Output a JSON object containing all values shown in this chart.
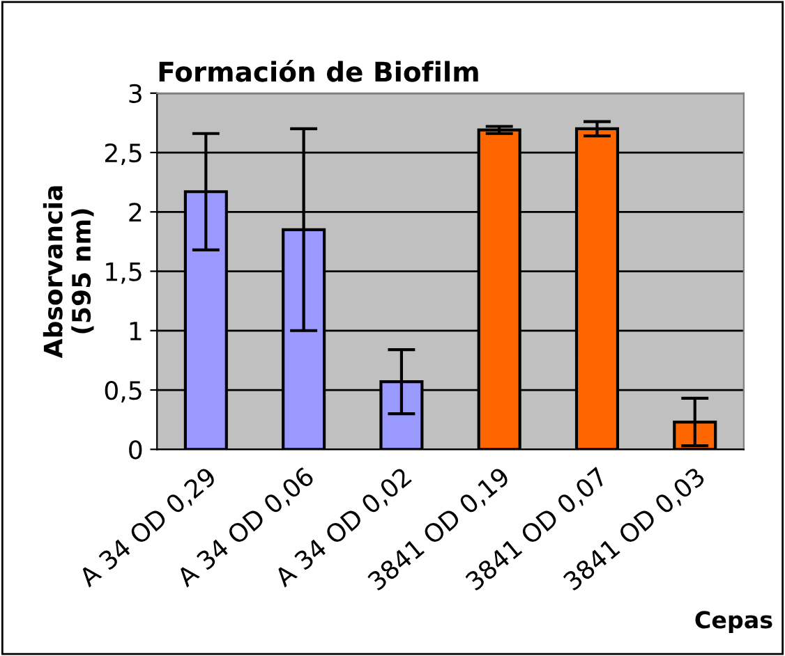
{
  "chart_data": {
    "type": "bar",
    "title": "Formación de Biofilm",
    "xlabel": "Cepas",
    "ylabel": "Absorvancia\n(595 nm)",
    "categories": [
      "A 34 OD 0,29",
      "A 34 OD 0,06",
      "A 34 OD 0,02",
      "3841 OD 0,19",
      "3841 OD 0,07",
      "3841 OD 0,03"
    ],
    "values": [
      2.17,
      1.85,
      0.57,
      2.69,
      2.7,
      0.23
    ],
    "errors": [
      0.49,
      0.85,
      0.27,
      0.03,
      0.06,
      0.2
    ],
    "colors": [
      "#9999ff",
      "#9999ff",
      "#9999ff",
      "#ff6600",
      "#ff6600",
      "#ff6600"
    ],
    "ylim": [
      0,
      3
    ],
    "yticks": [
      0,
      {
        "value": 0.5,
        "label": "0,5"
      },
      1,
      {
        "value": 1.5,
        "label": "1,5"
      },
      2,
      {
        "value": 2.5,
        "label": "2,5"
      },
      3
    ],
    "grid": "y",
    "legend": false
  }
}
